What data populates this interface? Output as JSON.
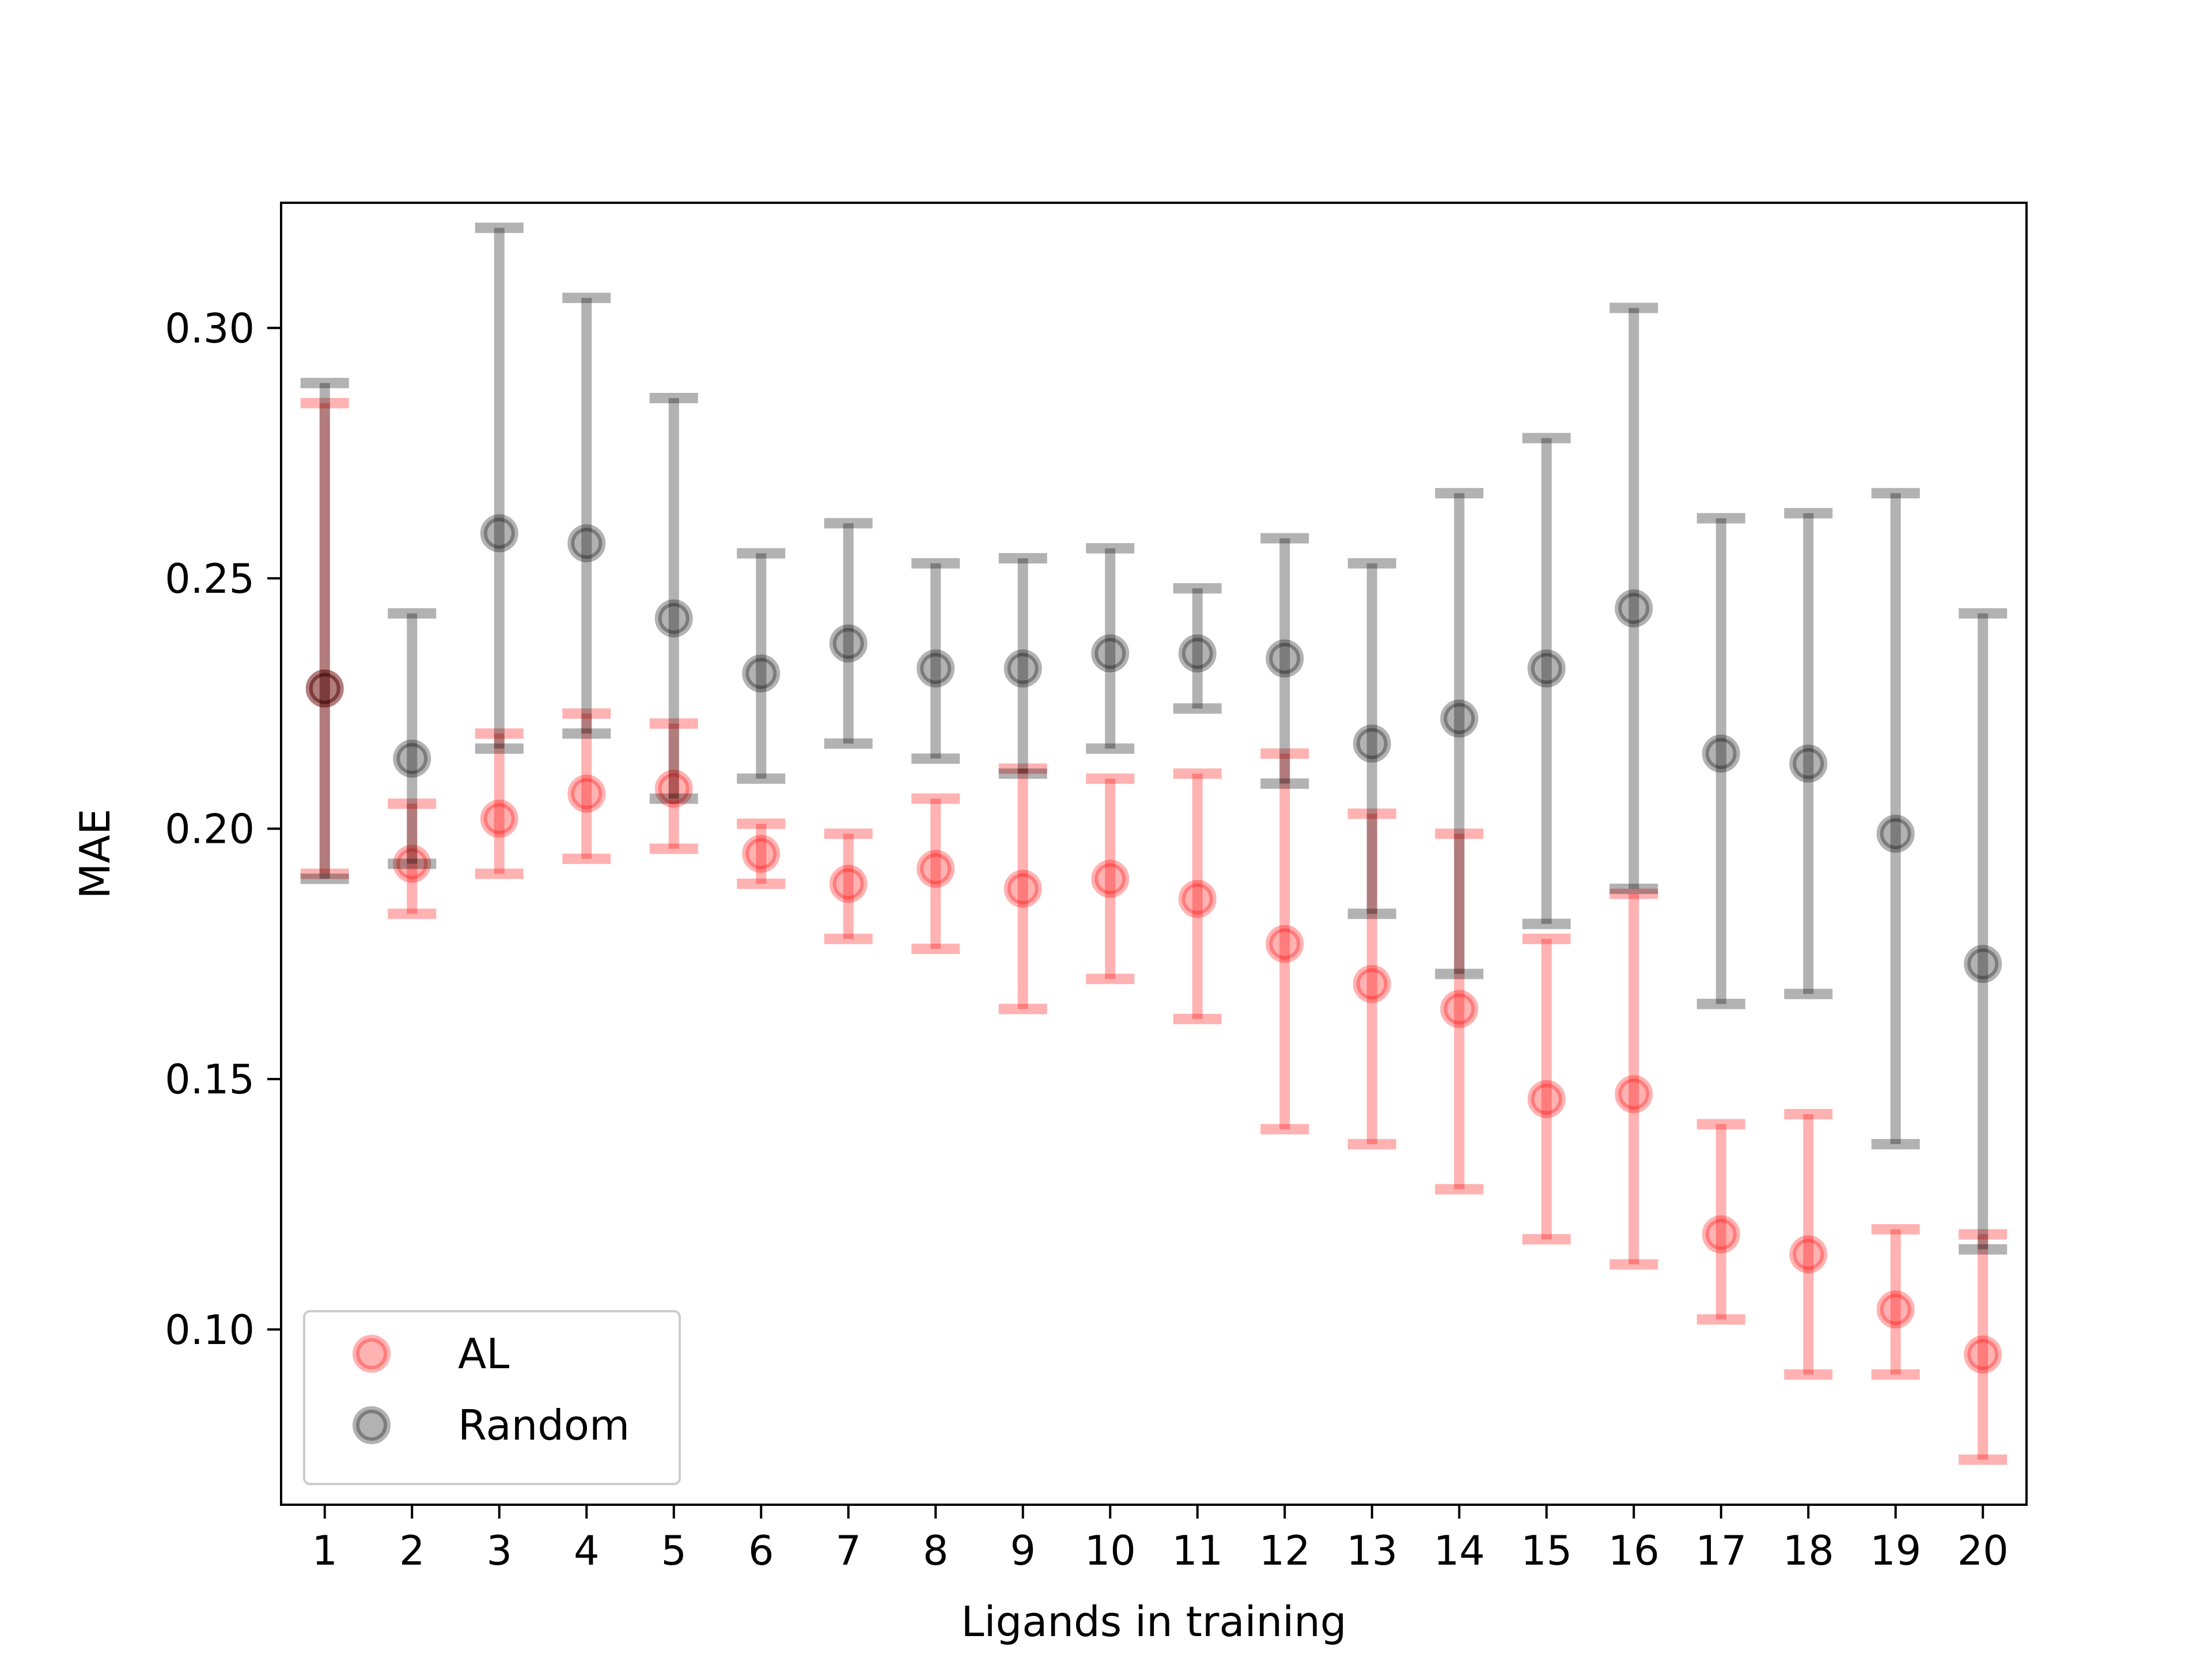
{
  "chart_data": {
    "type": "scatter",
    "xlabel": "Ligands in training",
    "ylabel": "MAE",
    "xlim": [
      0.5,
      20.5
    ],
    "ylim": [
      0.065,
      0.325
    ],
    "x_ticks": [
      1,
      2,
      3,
      4,
      5,
      6,
      7,
      8,
      9,
      10,
      11,
      12,
      13,
      14,
      15,
      16,
      17,
      18,
      19,
      20
    ],
    "x_tick_labels": [
      "1",
      "2",
      "3",
      "4",
      "5",
      "6",
      "7",
      "8",
      "9",
      "10",
      "11",
      "12",
      "13",
      "14",
      "15",
      "16",
      "17",
      "18",
      "19",
      "20"
    ],
    "y_ticks": [
      0.1,
      0.15,
      0.2,
      0.25,
      0.3
    ],
    "y_tick_labels": [
      "0.10",
      "0.15",
      "0.20",
      "0.25",
      "0.30"
    ],
    "grid": false,
    "legend_position": "lower-left",
    "series": [
      {
        "name": "AL",
        "color": "#ff0000",
        "x": [
          1,
          2,
          3,
          4,
          5,
          6,
          7,
          8,
          9,
          10,
          11,
          12,
          13,
          14,
          15,
          16,
          17,
          18,
          19,
          20
        ],
        "y": [
          0.228,
          0.193,
          0.202,
          0.207,
          0.208,
          0.195,
          0.189,
          0.192,
          0.188,
          0.19,
          0.186,
          0.177,
          0.169,
          0.164,
          0.146,
          0.147,
          0.119,
          0.115,
          0.104,
          0.095
        ],
        "err_low": [
          0.191,
          0.183,
          0.191,
          0.194,
          0.196,
          0.189,
          0.178,
          0.176,
          0.164,
          0.17,
          0.162,
          0.14,
          0.137,
          0.128,
          0.118,
          0.113,
          0.102,
          0.091,
          0.091,
          0.074
        ],
        "err_high": [
          0.285,
          0.205,
          0.219,
          0.223,
          0.221,
          0.201,
          0.199,
          0.206,
          0.212,
          0.21,
          0.211,
          0.215,
          0.203,
          0.199,
          0.178,
          0.187,
          0.141,
          0.143,
          0.12,
          0.119
        ]
      },
      {
        "name": "Random",
        "color": "#000000",
        "x": [
          1,
          2,
          3,
          4,
          5,
          6,
          7,
          8,
          9,
          10,
          11,
          12,
          13,
          14,
          15,
          16,
          17,
          18,
          19,
          20
        ],
        "y": [
          0.228,
          0.214,
          0.259,
          0.257,
          0.242,
          0.231,
          0.237,
          0.232,
          0.232,
          0.235,
          0.235,
          0.234,
          0.217,
          0.222,
          0.232,
          0.244,
          0.215,
          0.213,
          0.199,
          0.173
        ],
        "err_low": [
          0.19,
          0.193,
          0.216,
          0.219,
          0.206,
          0.21,
          0.217,
          0.214,
          0.211,
          0.216,
          0.224,
          0.209,
          0.183,
          0.171,
          0.181,
          0.188,
          0.165,
          0.167,
          0.137,
          0.116
        ],
        "err_high": [
          0.289,
          0.243,
          0.32,
          0.306,
          0.286,
          0.255,
          0.261,
          0.253,
          0.254,
          0.256,
          0.248,
          0.258,
          0.253,
          0.267,
          0.278,
          0.304,
          0.262,
          0.263,
          0.267,
          0.243
        ]
      }
    ]
  }
}
